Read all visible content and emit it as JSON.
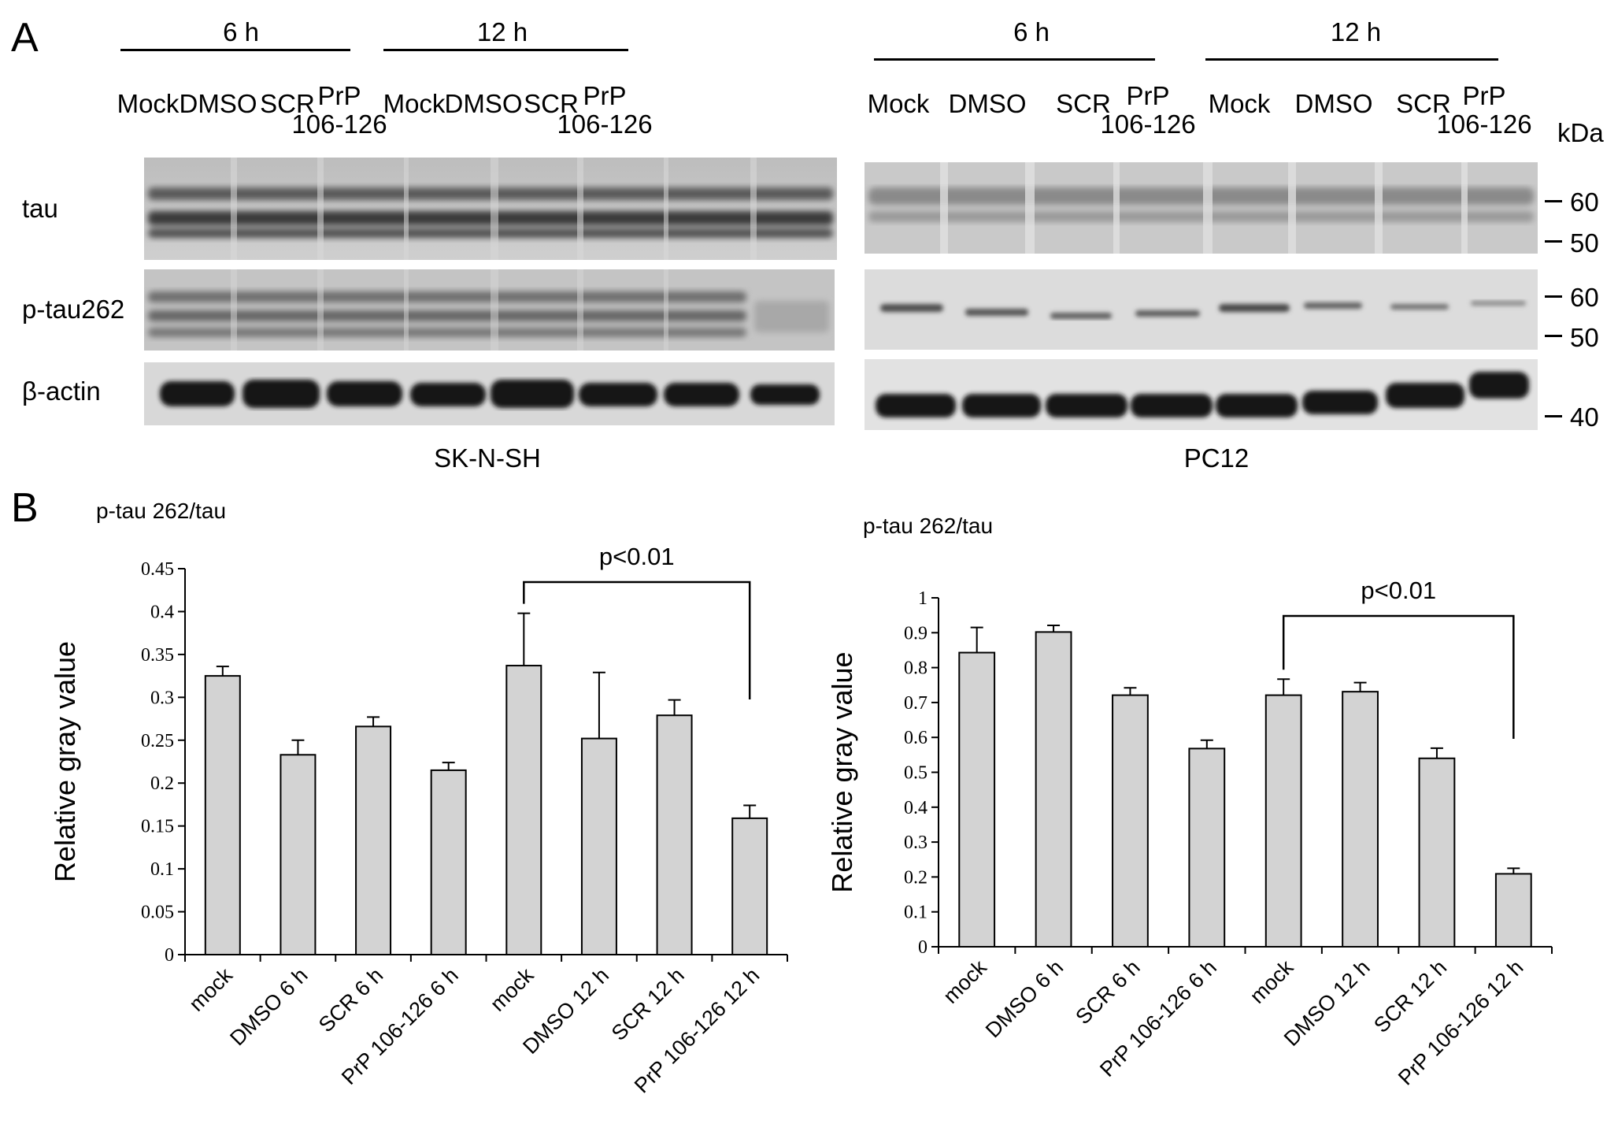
{
  "panel_a": {
    "letter": "A",
    "left": {
      "time_groups": [
        {
          "label": "6 h",
          "lanes": [
            [
              "Mock"
            ],
            [
              "DMSO"
            ],
            [
              "SCR"
            ],
            [
              "PrP",
              "106-126"
            ]
          ]
        },
        {
          "label": "12 h",
          "lanes": [
            [
              "Mock"
            ],
            [
              "DMSO"
            ],
            [
              "SCR"
            ],
            [
              "PrP",
              "106-126"
            ]
          ]
        }
      ],
      "row_labels": [
        "tau",
        "p-tau262",
        "β-actin"
      ],
      "cell_line": "SK-N-SH"
    },
    "right": {
      "time_groups": [
        {
          "label": "6 h",
          "lanes": [
            [
              "Mock"
            ],
            [
              "DMSO"
            ],
            [
              "SCR"
            ],
            [
              "PrP",
              "106-126"
            ]
          ]
        },
        {
          "label": "12 h",
          "lanes": [
            [
              "Mock"
            ],
            [
              "DMSO"
            ],
            [
              "SCR"
            ],
            [
              "PrP",
              "106-126"
            ]
          ]
        }
      ],
      "unit": "kDa",
      "markers": {
        "tau": [
          "60",
          "50"
        ],
        "ptau": [
          "60",
          "50"
        ],
        "actin": [
          "40"
        ]
      },
      "cell_line": "PC12"
    }
  },
  "panel_b": {
    "letter": "B"
  },
  "chart_data": [
    {
      "type": "bar",
      "title": "p-tau 262/tau",
      "ylabel": "Relative gray value",
      "ylim": [
        0,
        0.45
      ],
      "yticks": [
        "0",
        "0.05",
        "0.1",
        "0.15",
        "0.2",
        "0.25",
        "0.3",
        "0.35",
        "0.4",
        "0.45"
      ],
      "categories": [
        "mock",
        "DMSO 6 h",
        "SCR 6 h",
        "PrP 106-126 6 h",
        "mock",
        "DMSO 12 h",
        "SCR 12 h",
        "PrP 106-126 12 h"
      ],
      "values": [
        0.325,
        0.233,
        0.266,
        0.215,
        0.337,
        0.252,
        0.279,
        0.159
      ],
      "errors": [
        0.011,
        0.017,
        0.011,
        0.009,
        0.061,
        0.077,
        0.018,
        0.015
      ],
      "bar_color": "#d3d3d3",
      "annotation": {
        "text": "p<0.01",
        "from_index": 4,
        "to_index": 7
      }
    },
    {
      "type": "bar",
      "title": "p-tau 262/tau",
      "ylabel": "Relative gray value",
      "ylim": [
        0,
        1
      ],
      "yticks": [
        "0",
        "0.1",
        "0.2",
        "0.3",
        "0.4",
        "0.5",
        "0.6",
        "0.7",
        "0.8",
        "0.9",
        "1"
      ],
      "categories": [
        "mock",
        "DMSO 6 h",
        "SCR 6 h",
        "PrP 106-126 6 h",
        "mock",
        "DMSO 12 h",
        "SCR 12 h",
        "PrP 106-126 12 h"
      ],
      "values": [
        0.843,
        0.902,
        0.721,
        0.568,
        0.721,
        0.731,
        0.54,
        0.209
      ],
      "errors": [
        0.072,
        0.019,
        0.021,
        0.024,
        0.046,
        0.026,
        0.029,
        0.016
      ],
      "bar_color": "#d3d3d3",
      "annotation": {
        "text": "p<0.01",
        "from_index": 4,
        "to_index": 7
      }
    }
  ]
}
